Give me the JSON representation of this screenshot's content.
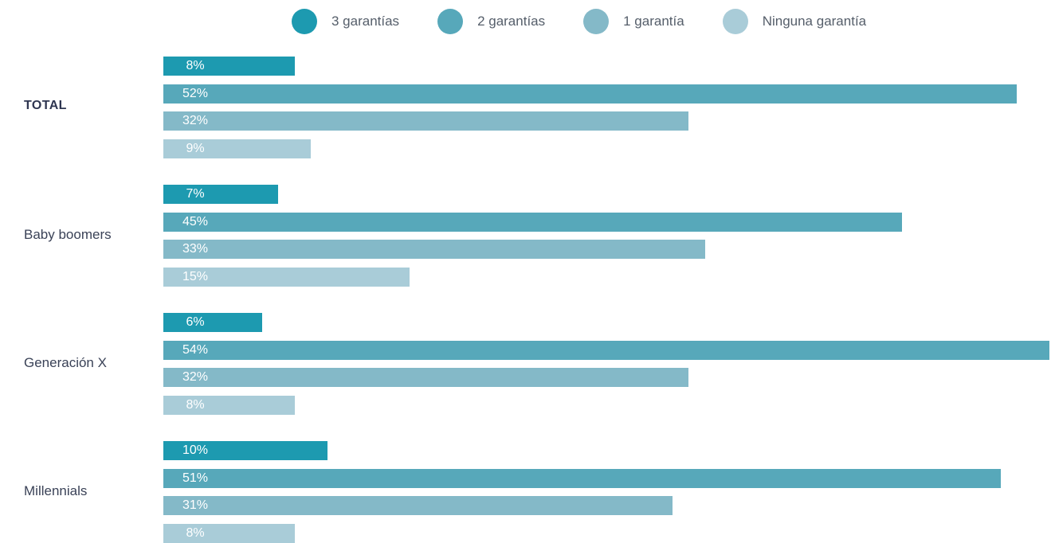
{
  "chart_data": {
    "type": "bar",
    "orientation": "horizontal",
    "categories": [
      "TOTAL",
      "Baby boomers",
      "Generación X",
      "Millennials"
    ],
    "series": [
      {
        "name": "3 garantías",
        "color": "#1d9ab0",
        "values": [
          8,
          7,
          6,
          10
        ],
        "labels": [
          "8%",
          "7%",
          "6%",
          "10%"
        ]
      },
      {
        "name": "2 garantías",
        "color": "#57a8ba",
        "values": [
          52,
          45,
          54,
          51
        ],
        "labels": [
          "52%",
          "45%",
          "54%",
          "51%"
        ]
      },
      {
        "name": "1 garantía",
        "color": "#84b9c8",
        "values": [
          32,
          33,
          32,
          31
        ],
        "labels": [
          "32%",
          "33%",
          "32%",
          "31%"
        ]
      },
      {
        "name": "Ninguna garantía",
        "color": "#a9ccd8",
        "values": [
          9,
          15,
          8,
          8
        ],
        "labels": [
          "9%",
          "15%",
          "8%",
          "8%"
        ]
      }
    ],
    "legend_position": "top",
    "grid": false,
    "bold_categories": [
      "TOTAL"
    ],
    "title": "",
    "xlabel": "",
    "ylabel": ""
  }
}
